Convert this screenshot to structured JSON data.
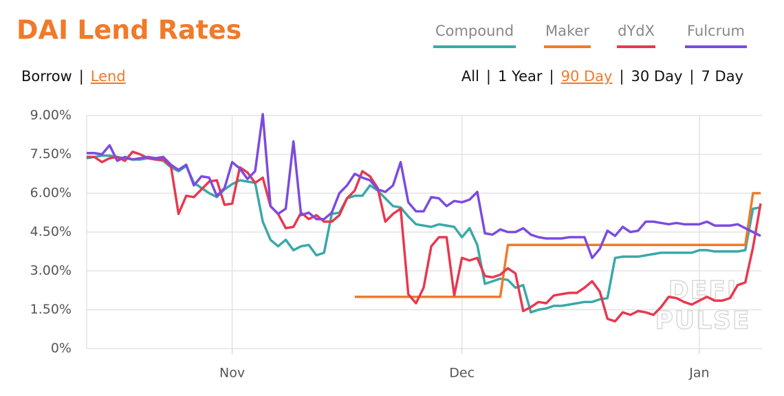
{
  "chart_data": {
    "type": "line",
    "title": "DAI Lend Rates",
    "categories": [
      null,
      null,
      null,
      null,
      null,
      null,
      null,
      null,
      null,
      null,
      null,
      null,
      null,
      null,
      null,
      null,
      null,
      null,
      null,
      "Nov",
      null,
      null,
      null,
      null,
      null,
      null,
      null,
      null,
      null,
      null,
      null,
      null,
      null,
      null,
      null,
      null,
      null,
      null,
      null,
      null,
      null,
      null,
      null,
      null,
      null,
      null,
      null,
      null,
      null,
      "Dec",
      null,
      null,
      null,
      null,
      null,
      null,
      null,
      null,
      null,
      null,
      null,
      null,
      null,
      null,
      null,
      null,
      null,
      null,
      null,
      null,
      null,
      null,
      null,
      null,
      null,
      null,
      null,
      null,
      null,
      null,
      "Jan",
      null,
      null,
      null,
      null,
      null,
      null,
      null,
      null
    ],
    "series": [
      {
        "name": "Compound",
        "color": "#3aa8a8",
        "values": [
          7.35,
          7.4,
          7.45,
          7.45,
          7.4,
          7.35,
          7.3,
          7.3,
          7.35,
          7.3,
          7.25,
          7.0,
          6.85,
          7.05,
          6.4,
          6.2,
          6.0,
          5.85,
          6.15,
          6.35,
          6.5,
          6.45,
          6.4,
          4.9,
          4.2,
          3.95,
          4.2,
          3.8,
          3.95,
          4.0,
          3.6,
          3.7,
          5.2,
          5.25,
          5.8,
          5.9,
          5.9,
          6.3,
          6.1,
          5.8,
          5.5,
          5.45,
          5.1,
          4.8,
          4.75,
          4.7,
          4.8,
          4.75,
          4.7,
          4.3,
          4.65,
          4.0,
          2.5,
          2.6,
          2.7,
          2.65,
          2.35,
          2.45,
          1.4,
          1.5,
          1.55,
          1.65,
          1.65,
          1.7,
          1.75,
          1.8,
          1.8,
          1.9,
          1.95,
          3.5,
          3.55,
          3.55,
          3.55,
          3.6,
          3.65,
          3.7,
          3.7,
          3.7,
          3.7,
          3.7,
          3.8,
          3.8,
          3.75,
          3.75,
          3.75,
          3.75,
          3.8,
          5.4,
          5.45
        ]
      },
      {
        "name": "Maker",
        "color": "#f07a2a",
        "values": [
          null,
          null,
          null,
          null,
          null,
          null,
          null,
          null,
          null,
          null,
          null,
          null,
          null,
          null,
          null,
          null,
          null,
          null,
          null,
          null,
          null,
          null,
          null,
          null,
          null,
          null,
          null,
          null,
          null,
          null,
          null,
          null,
          null,
          null,
          null,
          2.0,
          2.0,
          2.0,
          2.0,
          2.0,
          2.0,
          2.0,
          2.0,
          2.0,
          2.0,
          2.0,
          2.0,
          2.0,
          2.0,
          2.0,
          2.0,
          2.0,
          2.0,
          2.0,
          2.0,
          4.0,
          4.0,
          4.0,
          4.0,
          4.0,
          4.0,
          4.0,
          4.0,
          4.0,
          4.0,
          4.0,
          4.0,
          4.0,
          4.0,
          4.0,
          4.0,
          4.0,
          4.0,
          4.0,
          4.0,
          4.0,
          4.0,
          4.0,
          4.0,
          4.0,
          4.0,
          4.0,
          4.0,
          4.0,
          4.0,
          4.0,
          4.0,
          6.0,
          6.0
        ]
      },
      {
        "name": "dYdX",
        "color": "#e8384f",
        "values": [
          7.4,
          7.4,
          7.2,
          7.35,
          7.4,
          7.25,
          7.6,
          7.5,
          7.35,
          7.3,
          7.3,
          7.05,
          5.2,
          5.9,
          5.85,
          6.15,
          6.45,
          6.5,
          5.55,
          5.6,
          7.0,
          6.8,
          6.4,
          6.6,
          5.5,
          5.2,
          4.65,
          4.7,
          5.25,
          5.0,
          5.15,
          4.9,
          4.9,
          5.15,
          5.8,
          6.1,
          6.85,
          6.65,
          6.2,
          4.9,
          5.2,
          5.4,
          2.1,
          1.75,
          2.35,
          3.95,
          4.3,
          4.3,
          2.05,
          3.5,
          3.4,
          3.5,
          2.8,
          2.75,
          2.85,
          3.1,
          2.9,
          1.45,
          1.6,
          1.8,
          1.75,
          2.05,
          2.1,
          2.15,
          2.15,
          2.35,
          2.6,
          2.2,
          1.15,
          1.05,
          1.4,
          1.3,
          1.45,
          1.4,
          1.3,
          1.6,
          2.0,
          1.95,
          1.8,
          1.7,
          1.85,
          2.0,
          1.85,
          1.85,
          1.95,
          2.45,
          2.55,
          3.9,
          5.6
        ]
      },
      {
        "name": "Fulcrum",
        "color": "#7b4be0",
        "values": [
          7.55,
          7.55,
          7.5,
          7.85,
          7.25,
          7.4,
          7.3,
          7.35,
          7.4,
          7.35,
          7.4,
          7.1,
          6.9,
          7.1,
          6.3,
          6.65,
          6.6,
          5.9,
          6.2,
          7.2,
          6.95,
          6.55,
          6.85,
          9.05,
          5.5,
          5.2,
          5.4,
          8.0,
          5.15,
          5.25,
          5.0,
          5.0,
          5.25,
          6.0,
          6.3,
          6.75,
          6.6,
          6.5,
          6.15,
          6.05,
          6.3,
          7.2,
          5.65,
          5.3,
          5.3,
          5.85,
          5.8,
          5.5,
          5.7,
          5.65,
          5.75,
          6.05,
          4.45,
          4.4,
          4.6,
          4.5,
          4.5,
          4.65,
          4.4,
          4.3,
          4.25,
          4.25,
          4.25,
          4.3,
          4.3,
          4.3,
          3.5,
          3.85,
          4.55,
          4.35,
          4.7,
          4.5,
          4.55,
          4.9,
          4.9,
          4.85,
          4.8,
          4.85,
          4.8,
          4.8,
          4.8,
          4.9,
          4.75,
          4.75,
          4.75,
          4.8,
          4.65,
          4.5,
          4.35
        ]
      }
    ],
    "ylim": [
      0,
      9
    ],
    "yticks": [
      {
        "value": 0,
        "label": "0%"
      },
      {
        "value": 1.5,
        "label": "1.50%"
      },
      {
        "value": 3,
        "label": "3.00%"
      },
      {
        "value": 4.5,
        "label": "4.50%"
      },
      {
        "value": 6,
        "label": "6.00%"
      },
      {
        "value": 7.5,
        "label": "7.50%"
      },
      {
        "value": 9,
        "label": "9.00%"
      }
    ],
    "grid": true,
    "legend": "top-right",
    "watermark": [
      "DEFI",
      "PULSE"
    ]
  },
  "controls": {
    "separator": "|",
    "mode": {
      "items": [
        "Borrow",
        "Lend"
      ],
      "active": 1
    },
    "range": {
      "items": [
        "All",
        "1 Year",
        "90 Day",
        "30 Day",
        "7 Day"
      ],
      "active": 2
    }
  }
}
